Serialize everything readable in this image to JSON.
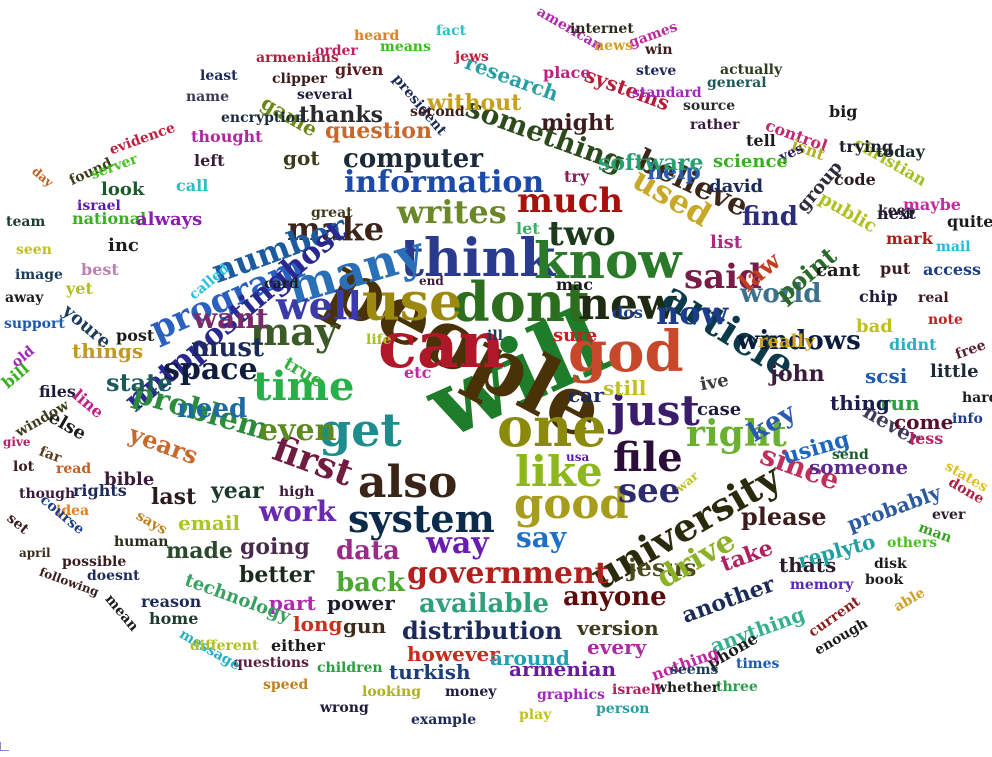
{
  "words": [
    {
      "t": "will",
      "c": "#1e7d2a"
    },
    {
      "t": "people",
      "c": "#4a3208"
    },
    {
      "t": "can",
      "c": "#b0182a"
    },
    {
      "t": "dont",
      "c": "#2c6e1e"
    },
    {
      "t": "use",
      "c": "#9c8a10"
    },
    {
      "t": "think",
      "c": "#2a3a8c"
    },
    {
      "t": "one",
      "c": "#8c8a0c"
    },
    {
      "t": "god",
      "c": "#c8482c"
    },
    {
      "t": "know",
      "c": "#2a7a2a"
    },
    {
      "t": "also",
      "c": "#3a2418"
    },
    {
      "t": "new",
      "c": "#1e2a12"
    },
    {
      "t": "many",
      "c": "#2a70b8"
    },
    {
      "t": "like",
      "c": "#8cb81c"
    },
    {
      "t": "just",
      "c": "#3a1c6a"
    },
    {
      "t": "good",
      "c": "#a89c1c"
    },
    {
      "t": "get",
      "c": "#1e8c8c"
    },
    {
      "t": "time",
      "c": "#28b048"
    },
    {
      "t": "may",
      "c": "#3c5a28"
    },
    {
      "t": "well",
      "c": "#3a3aa8"
    },
    {
      "t": "article",
      "c": "#0c3a4a"
    },
    {
      "t": "first",
      "c": "#701c40"
    },
    {
      "t": "system",
      "c": "#0c2a4a"
    },
    {
      "t": "university",
      "c": "#2a2a0c"
    },
    {
      "t": "file",
      "c": "#2c0c38"
    },
    {
      "t": "see",
      "c": "#2c2c6c"
    },
    {
      "t": "right",
      "c": "#6ab030"
    },
    {
      "t": "said",
      "c": "#7a1c48"
    },
    {
      "t": "much",
      "c": "#a8100c"
    },
    {
      "t": "two",
      "c": "#1e3a1c"
    },
    {
      "t": "make",
      "c": "#3c2418"
    },
    {
      "t": "writes",
      "c": "#6a8828"
    },
    {
      "t": "information",
      "c": "#1c4aa8"
    },
    {
      "t": "program",
      "c": "#2a60c0"
    },
    {
      "t": "number",
      "c": "#1c5aa0"
    },
    {
      "t": "nntppostinghost",
      "c": "#282890"
    },
    {
      "t": "now",
      "c": "#1c3c8c"
    },
    {
      "t": "used",
      "c": "#c8a828"
    },
    {
      "t": "believe",
      "c": "#3c2818"
    },
    {
      "t": "something",
      "c": "#2c4a1c"
    },
    {
      "t": "computer",
      "c": "#1c2a3a"
    },
    {
      "t": "want",
      "c": "#7a2a6a"
    },
    {
      "t": "must",
      "c": "#1c2a5a"
    },
    {
      "t": "space",
      "c": "#101c3c"
    },
    {
      "t": "problem",
      "c": "#2c8c3c"
    },
    {
      "t": "need",
      "c": "#1c6aa0"
    },
    {
      "t": "even",
      "c": "#5a8a20"
    },
    {
      "t": "work",
      "c": "#6a2ab0"
    },
    {
      "t": "data",
      "c": "#9c2a88"
    },
    {
      "t": "way",
      "c": "#6a1cb0"
    },
    {
      "t": "say",
      "c": "#1c70c8"
    },
    {
      "t": "government",
      "c": "#b0201c"
    },
    {
      "t": "back",
      "c": "#48a830"
    },
    {
      "t": "available",
      "c": "#30a078"
    },
    {
      "t": "distribution",
      "c": "#1c2a5a"
    },
    {
      "t": "anyone",
      "c": "#5a0c0c"
    },
    {
      "t": "jesus",
      "c": "#4a4a1c"
    },
    {
      "t": "drive",
      "c": "#8cb028"
    },
    {
      "t": "please",
      "c": "#3c1c1c"
    },
    {
      "t": "since",
      "c": "#c0305a"
    },
    {
      "t": "key",
      "c": "#2858b0"
    },
    {
      "t": "using",
      "c": "#1c68c0"
    },
    {
      "t": "windows",
      "c": "#0c1c3c"
    },
    {
      "t": "world",
      "c": "#3c708c"
    },
    {
      "t": "point",
      "c": "#2a6a2a"
    },
    {
      "t": "law",
      "c": "#c04020"
    },
    {
      "t": "find",
      "c": "#2c2c7a"
    },
    {
      "t": "help",
      "c": "#2c5ab0"
    },
    {
      "t": "software",
      "c": "#28a070"
    },
    {
      "t": "might",
      "c": "#3c1c1c"
    },
    {
      "t": "question",
      "c": "#c8682c"
    },
    {
      "t": "without",
      "c": "#c8a020"
    },
    {
      "t": "research",
      "c": "#28a0a0"
    },
    {
      "t": "systems",
      "c": "#b81c38"
    },
    {
      "t": "game",
      "c": "#6c8818"
    },
    {
      "t": "got",
      "c": "#3c3c1c"
    },
    {
      "t": "thanks",
      "c": "#2a2a2a"
    },
    {
      "t": "years",
      "c": "#c8682c"
    },
    {
      "t": "state",
      "c": "#1c5a5a"
    },
    {
      "t": "things",
      "c": "#c09a20"
    },
    {
      "t": "last",
      "c": "#2a1c1c"
    },
    {
      "t": "year",
      "c": "#1c3a2a"
    },
    {
      "t": "email",
      "c": "#a8c820"
    },
    {
      "t": "going",
      "c": "#4a2a4a"
    },
    {
      "t": "made",
      "c": "#2a4a2a"
    },
    {
      "t": "better",
      "c": "#1c2a1c"
    },
    {
      "t": "part",
      "c": "#b028b0"
    },
    {
      "t": "power",
      "c": "#1c1c2c"
    },
    {
      "t": "gun",
      "c": "#3c2c1c"
    },
    {
      "t": "long",
      "c": "#c8301c"
    },
    {
      "t": "however",
      "c": "#c82a1c"
    },
    {
      "t": "turkish",
      "c": "#1c3c7a"
    },
    {
      "t": "around",
      "c": "#20a0b0"
    },
    {
      "t": "armenian",
      "c": "#6a1c9c"
    },
    {
      "t": "version",
      "c": "#3c3c1c"
    },
    {
      "t": "every",
      "c": "#b028a0"
    },
    {
      "t": "another",
      "c": "#1c2a5a"
    },
    {
      "t": "anything",
      "c": "#38b090"
    },
    {
      "t": "take",
      "c": "#b02060"
    },
    {
      "t": "thats",
      "c": "#2c1c2c"
    },
    {
      "t": "replyto",
      "c": "#20a0a0"
    },
    {
      "t": "probably",
      "c": "#2c5aa0"
    },
    {
      "t": "someone",
      "c": "#5a2a8c"
    },
    {
      "t": "never",
      "c": "#3c3c5a"
    },
    {
      "t": "come",
      "c": "#5a0c2a"
    },
    {
      "t": "run",
      "c": "#28a040"
    },
    {
      "t": "thing",
      "c": "#1c1c4a"
    },
    {
      "t": "scsi",
      "c": "#1c5ab0"
    },
    {
      "t": "john",
      "c": "#3c1c3c"
    },
    {
      "t": "really",
      "c": "#d0a020"
    },
    {
      "t": "case",
      "c": "#1c1c3c"
    },
    {
      "t": "ive",
      "c": "#3c3c3c"
    },
    {
      "t": "still",
      "c": "#c0c020"
    },
    {
      "t": "car",
      "c": "#1c2a5a"
    },
    {
      "t": "sure",
      "c": "#c82020"
    },
    {
      "t": "dos",
      "c": "#1c3c8c"
    },
    {
      "t": "mac",
      "c": "#1c1c1c"
    },
    {
      "t": "let",
      "c": "#38b060"
    },
    {
      "t": "try",
      "c": "#8c1c5a"
    },
    {
      "t": "group",
      "c": "#2c2c3c"
    },
    {
      "t": "public",
      "c": "#b0c020"
    },
    {
      "t": "next",
      "c": "#1c1c3c"
    },
    {
      "t": "code",
      "c": "#2c1c1c"
    },
    {
      "t": "christian",
      "c": "#a0c020"
    },
    {
      "t": "trying",
      "c": "#1c1c2c"
    },
    {
      "t": "big",
      "c": "#1c1c1c"
    },
    {
      "t": "today",
      "c": "#1c2a2a"
    },
    {
      "t": "control",
      "c": "#c02870"
    },
    {
      "t": "isnt",
      "c": "#b0b020"
    },
    {
      "t": "yes",
      "c": "#2c1c5a"
    },
    {
      "t": "tell",
      "c": "#1c1c1c"
    },
    {
      "t": "science",
      "c": "#38b020"
    },
    {
      "t": "david",
      "c": "#1c2a5a"
    },
    {
      "t": "list",
      "c": "#b02880"
    },
    {
      "t": "cant",
      "c": "#1c1c1c"
    },
    {
      "t": "put",
      "c": "#3c1c1c"
    },
    {
      "t": "chip",
      "c": "#1c1c3c"
    },
    {
      "t": "mark",
      "c": "#a8201c"
    },
    {
      "t": "keep",
      "c": "#2c1c2c"
    },
    {
      "t": "maybe",
      "c": "#c828a0"
    },
    {
      "t": "quite",
      "c": "#1c1c1c"
    },
    {
      "t": "mail",
      "c": "#28b8e0"
    },
    {
      "t": "access",
      "c": "#1c3c8c"
    },
    {
      "t": "real",
      "c": "#3c1c1c"
    },
    {
      "t": "note",
      "c": "#c02020"
    },
    {
      "t": "free",
      "c": "#5a1c2a"
    },
    {
      "t": "bad",
      "c": "#c0c020"
    },
    {
      "t": "didnt",
      "c": "#28b0c0"
    },
    {
      "t": "little",
      "c": "#1c2a3a"
    },
    {
      "t": "hard",
      "c": "#1c1c1c"
    },
    {
      "t": "info",
      "c": "#1c3c8c"
    },
    {
      "t": "less",
      "c": "#c02060"
    },
    {
      "t": "send",
      "c": "#1c5a2a"
    },
    {
      "t": "states",
      "c": "#e0c020"
    },
    {
      "t": "done",
      "c": "#b02040"
    },
    {
      "t": "ever",
      "c": "#2c1c2c"
    },
    {
      "t": "man",
      "c": "#38a020"
    },
    {
      "t": "others",
      "c": "#48c020"
    },
    {
      "t": "disk",
      "c": "#1c1c1c"
    },
    {
      "t": "book",
      "c": "#1c1c1c"
    },
    {
      "t": "able",
      "c": "#d0a020"
    },
    {
      "t": "memory",
      "c": "#5a2ab0"
    },
    {
      "t": "enough",
      "c": "#1c1c1c"
    },
    {
      "t": "current",
      "c": "#8c1c1c"
    },
    {
      "t": "times",
      "c": "#1c5ab0"
    },
    {
      "t": "phone",
      "c": "#1c1c1c"
    },
    {
      "t": "nothing",
      "c": "#c028a0"
    },
    {
      "t": "seems",
      "c": "#1c3c5a"
    },
    {
      "t": "three",
      "c": "#28a048"
    },
    {
      "t": "whether",
      "c": "#1c1c1c"
    },
    {
      "t": "israeli",
      "c": "#b02060"
    },
    {
      "t": "person",
      "c": "#28a0a0"
    },
    {
      "t": "graphics",
      "c": "#a028c0"
    },
    {
      "t": "play",
      "c": "#c0c020"
    },
    {
      "t": "money",
      "c": "#1c1c3c"
    },
    {
      "t": "looking",
      "c": "#b0b020"
    },
    {
      "t": "example",
      "c": "#1c2a5a"
    },
    {
      "t": "wrong",
      "c": "#1c1c3c"
    },
    {
      "t": "speed",
      "c": "#c08020"
    },
    {
      "t": "children",
      "c": "#28a040"
    },
    {
      "t": "questions",
      "c": "#5a1c3c"
    },
    {
      "t": "either",
      "c": "#1c1c1c"
    },
    {
      "t": "message",
      "c": "#28b0c0"
    },
    {
      "t": "different",
      "c": "#b0c020"
    },
    {
      "t": "home",
      "c": "#1c3c2c"
    },
    {
      "t": "reason",
      "c": "#1c2a5a"
    },
    {
      "t": "technology",
      "c": "#38a060"
    },
    {
      "t": "mean",
      "c": "#1c1c1c"
    },
    {
      "t": "doesnt",
      "c": "#1c2a5a"
    },
    {
      "t": "following",
      "c": "#3c1c1c"
    },
    {
      "t": "possible",
      "c": "#3c1c1c"
    },
    {
      "t": "april",
      "c": "#3c2a1c"
    },
    {
      "t": "human",
      "c": "#2c2c1c"
    },
    {
      "t": "idea",
      "c": "#e08020"
    },
    {
      "t": "says",
      "c": "#c08020"
    },
    {
      "t": "course",
      "c": "#1c3c8c"
    },
    {
      "t": "set",
      "c": "#3c1c1c"
    },
    {
      "t": "though",
      "c": "#3c1c3c"
    },
    {
      "t": "rights",
      "c": "#1c2a5a"
    },
    {
      "t": "bible",
      "c": "#3c1c3c"
    },
    {
      "t": "lot",
      "c": "#3c1c1c"
    },
    {
      "t": "read",
      "c": "#c06020"
    },
    {
      "t": "high",
      "c": "#3c1c3c"
    },
    {
      "t": "give",
      "c": "#b02060"
    },
    {
      "t": "far",
      "c": "#5a3c1c"
    },
    {
      "t": "else",
      "c": "#1c1c1c"
    },
    {
      "t": "line",
      "c": "#c02080"
    },
    {
      "t": "window",
      "c": "#3c3c1c"
    },
    {
      "t": "files",
      "c": "#1c1c3c"
    },
    {
      "t": "bill",
      "c": "#38b020"
    },
    {
      "t": "old",
      "c": "#a028c0"
    },
    {
      "t": "support",
      "c": "#1c5ab0"
    },
    {
      "t": "youre",
      "c": "#1c3c5a"
    },
    {
      "t": "post",
      "c": "#1c1c1c"
    },
    {
      "t": "true",
      "c": "#38b040"
    },
    {
      "t": "life",
      "c": "#a8c020"
    },
    {
      "t": "etc",
      "c": "#c028a0"
    },
    {
      "t": "ill",
      "c": "#1c3c5a"
    },
    {
      "t": "usa",
      "c": "#5a1cb0"
    },
    {
      "t": "war",
      "c": "#c0c020"
    },
    {
      "t": "away",
      "c": "#1c1c1c"
    },
    {
      "t": "yet",
      "c": "#b0c020"
    },
    {
      "t": "image",
      "c": "#1c3c5a"
    },
    {
      "t": "best",
      "c": "#c080b0"
    },
    {
      "t": "called",
      "c": "#28c0e0"
    },
    {
      "t": "card",
      "c": "#1c1c1c"
    },
    {
      "t": "end",
      "c": "#3c1c3c"
    },
    {
      "t": "inc",
      "c": "#1c1c1c"
    },
    {
      "t": "seen",
      "c": "#c0c020"
    },
    {
      "t": "team",
      "c": "#1c3c2c"
    },
    {
      "t": "national",
      "c": "#38b020"
    },
    {
      "t": "always",
      "c": "#8c1cb0"
    },
    {
      "t": "great",
      "c": "#3c3c1c"
    },
    {
      "t": "look",
      "c": "#1c5a2a"
    },
    {
      "t": "call",
      "c": "#28c0c0"
    },
    {
      "t": "israel",
      "c": "#5a1cb0"
    },
    {
      "t": "day",
      "c": "#c06020"
    },
    {
      "t": "found",
      "c": "#3c3c1c"
    },
    {
      "t": "server",
      "c": "#48c020"
    },
    {
      "t": "evidence",
      "c": "#c02040"
    },
    {
      "t": "encryption",
      "c": "#1c2a3a"
    },
    {
      "t": "thought",
      "c": "#b028a0"
    },
    {
      "t": "left",
      "c": "#3c1c3c"
    },
    {
      "t": "least",
      "c": "#1c2a5a"
    },
    {
      "t": "name",
      "c": "#3c3c5a"
    },
    {
      "t": "clipper",
      "c": "#3c1c1c"
    },
    {
      "t": "armenians",
      "c": "#b02040"
    },
    {
      "t": "order",
      "c": "#c02060"
    },
    {
      "t": "heard",
      "c": "#e08020"
    },
    {
      "t": "means",
      "c": "#38c020"
    },
    {
      "t": "given",
      "c": "#5a1c1c"
    },
    {
      "t": "several",
      "c": "#1c1c3c"
    },
    {
      "t": "president",
      "c": "#1c2a5a"
    },
    {
      "t": "second",
      "c": "#3c1c1c"
    },
    {
      "t": "fact",
      "c": "#28c0c0"
    },
    {
      "t": "jews",
      "c": "#c02040"
    },
    {
      "t": "american",
      "c": "#b028b0"
    },
    {
      "t": "internet",
      "c": "#2c2c1c"
    },
    {
      "t": "games",
      "c": "#c028a0"
    },
    {
      "t": "news",
      "c": "#d0a020"
    },
    {
      "t": "win",
      "c": "#3c1c1c"
    },
    {
      "t": "place",
      "c": "#c02080"
    },
    {
      "t": "steve",
      "c": "#1c2a5a"
    },
    {
      "t": "actually",
      "c": "#2c3c1c"
    },
    {
      "t": "general",
      "c": "#1c5a5a"
    },
    {
      "t": "standard",
      "c": "#a028c0"
    },
    {
      "t": "source",
      "c": "#2c2c2c"
    },
    {
      "t": "rather",
      "c": "#3c1c3c"
    },
    {
      "t": "problems",
      "c": "#1c1c1c"
    },
    {
      "t": "center",
      "c": "#1c3c8c"
    }
  ]
}
